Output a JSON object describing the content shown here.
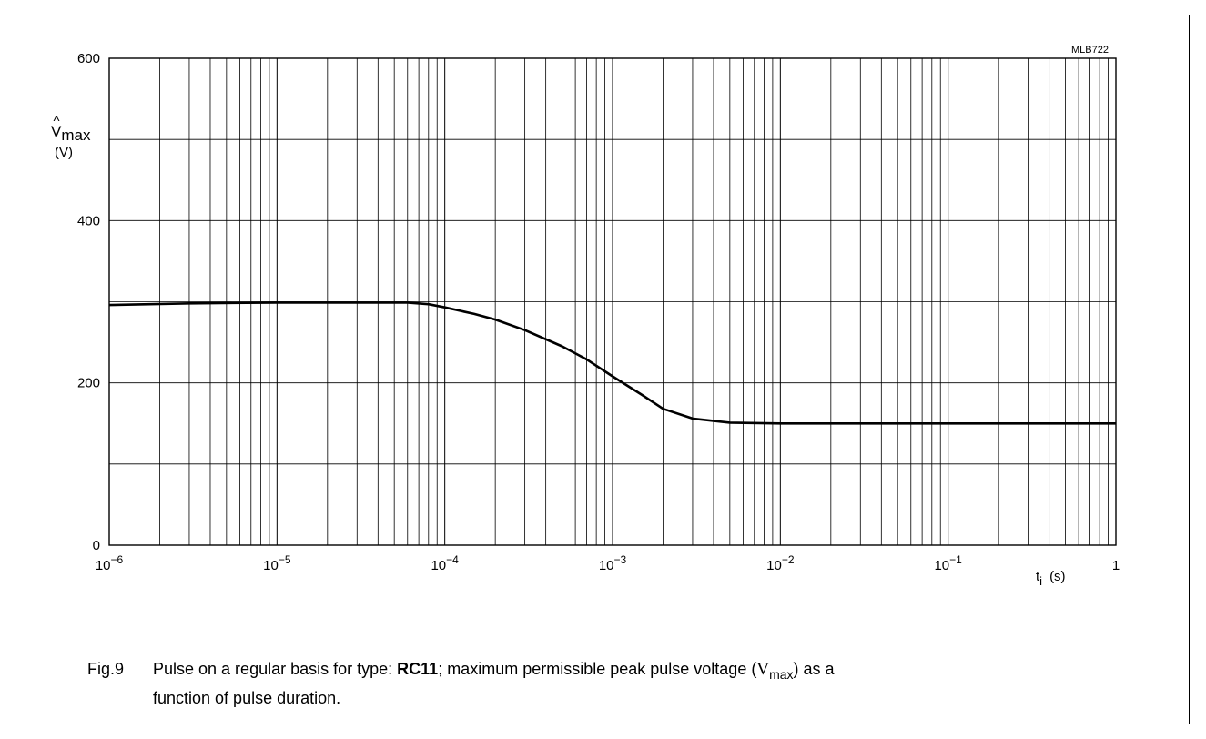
{
  "chart_data": {
    "type": "line",
    "code": "MLB722",
    "ylabel_symbol": "V",
    "ylabel_subscript": "max",
    "ylabel_unit": "(V)",
    "xlabel_symbol": "t",
    "xlabel_subscript": "i",
    "xlabel_unit": "(s)",
    "x_scale": "log",
    "xlim": [
      1e-06,
      1
    ],
    "ylim": [
      0,
      600
    ],
    "grid": true,
    "x_ticks": [
      {
        "base": "10",
        "exp": "−6"
      },
      {
        "base": "10",
        "exp": "−5"
      },
      {
        "base": "10",
        "exp": "−4"
      },
      {
        "base": "10",
        "exp": "−3"
      },
      {
        "base": "10",
        "exp": "−2"
      },
      {
        "base": "10",
        "exp": "−1"
      },
      {
        "base": "1",
        "exp": ""
      }
    ],
    "y_ticks": [
      "0",
      "200",
      "400",
      "600"
    ],
    "y_tick_values": [
      0,
      200,
      400,
      600
    ],
    "series": [
      {
        "x": [
          1e-06,
          3e-06,
          1e-05,
          3e-05,
          6e-05,
          8e-05,
          0.0001,
          0.00015,
          0.0002,
          0.0003,
          0.0005,
          0.0007,
          0.001,
          0.0015,
          0.002,
          0.003,
          0.005,
          0.01,
          0.1,
          1
        ],
        "y": [
          296,
          298,
          299,
          299,
          299,
          297,
          293,
          285,
          278,
          265,
          245,
          229,
          208,
          185,
          168,
          156,
          151,
          150,
          150,
          150
        ]
      }
    ]
  },
  "caption": {
    "label": "Fig.9",
    "text_before": "Pulse on a regular basis for type: ",
    "type_bold": "RC11",
    "text_middle": "; maximum permissible peak pulse voltage (",
    "sym": "V",
    "sym_sub": "max",
    "text_after": ") as a",
    "line2": "function of pulse duration."
  }
}
